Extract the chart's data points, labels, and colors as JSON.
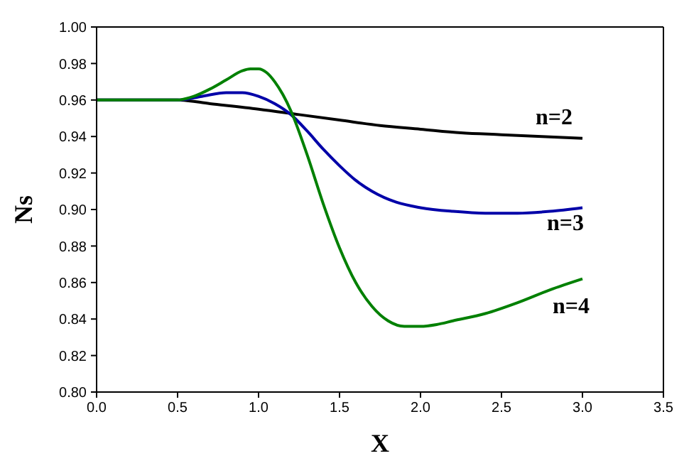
{
  "chart_data": {
    "type": "line",
    "xlabel": "X",
    "ylabel": "Ns",
    "xlim": [
      0,
      3.5
    ],
    "xticks": [
      {
        "value": 0,
        "label": "0.0"
      },
      0.5,
      {
        "value": 1,
        "label": "1.0"
      },
      1.5,
      {
        "value": 2,
        "label": "2.0"
      },
      2.5,
      {
        "value": 3,
        "label": "3.0"
      },
      3.5
    ],
    "ylim": [
      0.8,
      1
    ],
    "yticks": [
      {
        "value": 0.8,
        "label": "0.80"
      },
      0.82,
      0.84,
      0.86,
      0.88,
      {
        "value": 0.9,
        "label": "0.90"
      },
      0.92,
      0.94,
      0.96,
      0.98,
      {
        "value": 1,
        "label": "1.00"
      }
    ],
    "legend": false,
    "marker": "none",
    "line_style": "solid",
    "series": [
      {
        "name": "n=2",
        "color": "#000000",
        "x": [
          0,
          0.3,
          0.5,
          0.7,
          1.0,
          1.25,
          1.5,
          1.75,
          2.0,
          2.25,
          2.5,
          2.75,
          3.0
        ],
        "values": [
          0.96,
          0.96,
          0.96,
          0.958,
          0.955,
          0.952,
          0.949,
          0.946,
          0.944,
          0.942,
          0.941,
          0.94,
          0.939
        ]
      },
      {
        "name": "n=3",
        "color": "#0000a8",
        "x": [
          0,
          0.3,
          0.5,
          0.65,
          0.8,
          0.9,
          1.0,
          1.1,
          1.2,
          1.3,
          1.4,
          1.5,
          1.6,
          1.7,
          1.85,
          2.0,
          2.2,
          2.4,
          2.6,
          2.8,
          3.0
        ],
        "values": [
          0.96,
          0.96,
          0.96,
          0.962,
          0.964,
          0.964,
          0.962,
          0.958,
          0.952,
          0.943,
          0.933,
          0.924,
          0.916,
          0.91,
          0.904,
          0.901,
          0.899,
          0.898,
          0.898,
          0.899,
          0.901
        ]
      },
      {
        "name": "n=4",
        "color": "#008000",
        "x": [
          0,
          0.3,
          0.5,
          0.6,
          0.7,
          0.8,
          0.9,
          0.95,
          1.0,
          1.05,
          1.1,
          1.15,
          1.2,
          1.3,
          1.4,
          1.5,
          1.6,
          1.7,
          1.8,
          1.9,
          2.0,
          2.1,
          2.2,
          2.4,
          2.6,
          2.8,
          3.0
        ],
        "values": [
          0.96,
          0.96,
          0.96,
          0.962,
          0.966,
          0.971,
          0.976,
          0.977,
          0.977,
          0.975,
          0.97,
          0.963,
          0.954,
          0.93,
          0.903,
          0.879,
          0.86,
          0.847,
          0.839,
          0.836,
          0.836,
          0.837,
          0.839,
          0.843,
          0.849,
          0.856,
          0.862
        ]
      }
    ]
  }
}
